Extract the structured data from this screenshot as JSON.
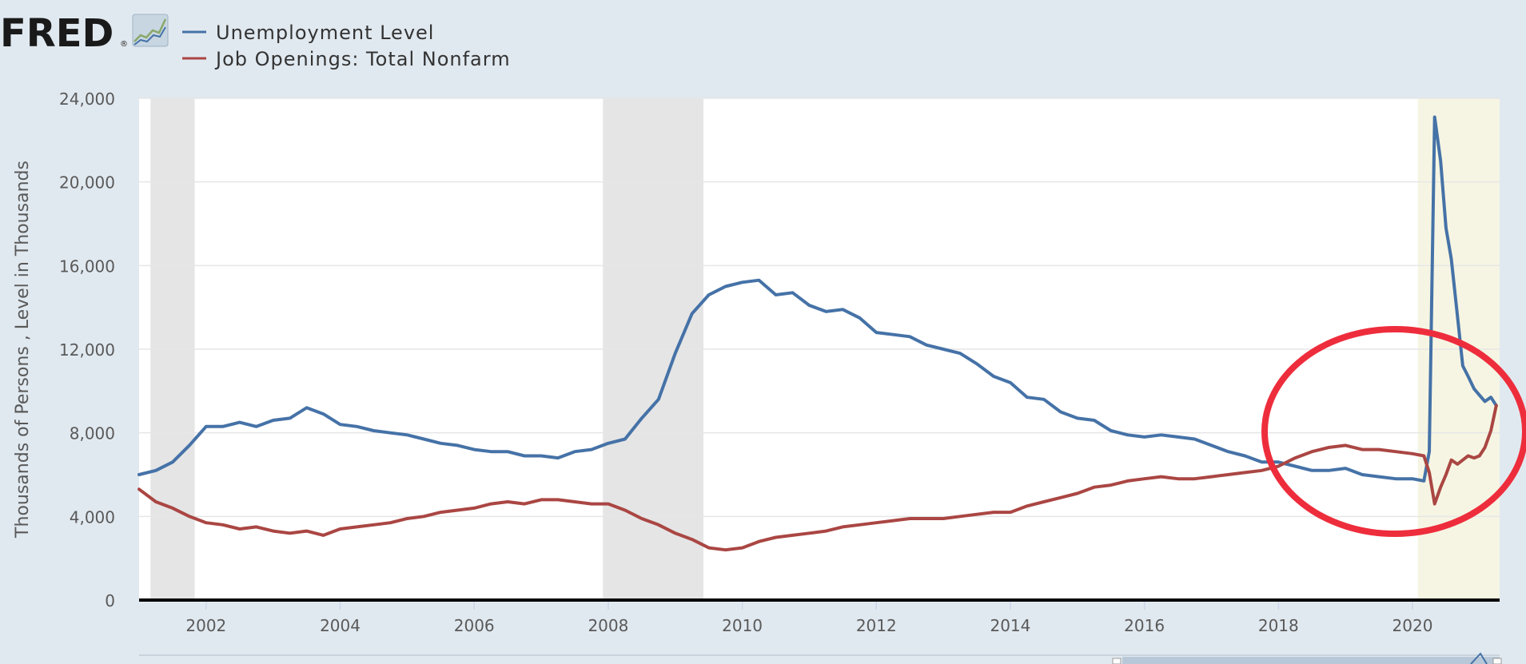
{
  "logo": {
    "text": "FRED",
    "registered": "®"
  },
  "colors": {
    "background": "#e1e9f0",
    "plot_bg": "#ffffff",
    "recession_shade": "#e5e5e5",
    "highlight_shade": "#f6f5e3",
    "unemployment": "#4572a7",
    "job_openings": "#aa4643",
    "annotation_circle": "#ee2d3c"
  },
  "chart_data": {
    "type": "line",
    "title": "",
    "ylabel": "Thousands of Persons , Level in Thousands",
    "xlabel": "",
    "xlim": [
      2001.0,
      2021.3
    ],
    "ylim": [
      0,
      24000
    ],
    "x_ticks": [
      2002,
      2004,
      2006,
      2008,
      2010,
      2012,
      2014,
      2016,
      2018,
      2020
    ],
    "x_tick_labels": [
      "2002",
      "2004",
      "2006",
      "2008",
      "2010",
      "2012",
      "2014",
      "2016",
      "2018",
      "2020"
    ],
    "y_ticks": [
      0,
      4000,
      8000,
      12000,
      16000,
      20000,
      24000
    ],
    "y_tick_labels": [
      "0",
      "4,000",
      "8,000",
      "12,000",
      "16,000",
      "20,000",
      "24,000"
    ],
    "grid": true,
    "legend_position": "top-left",
    "recessions": [
      [
        2001.17,
        2001.83
      ],
      [
        2007.92,
        2009.42
      ],
      [
        2020.08,
        2020.33
      ]
    ],
    "highlight_range": [
      2020.08,
      2021.3
    ],
    "series": [
      {
        "name": "Unemployment Level",
        "x": [
          2001.0,
          2001.25,
          2001.5,
          2001.75,
          2002.0,
          2002.25,
          2002.5,
          2002.75,
          2003.0,
          2003.25,
          2003.5,
          2003.75,
          2004.0,
          2004.25,
          2004.5,
          2004.75,
          2005.0,
          2005.25,
          2005.5,
          2005.75,
          2006.0,
          2006.25,
          2006.5,
          2006.75,
          2007.0,
          2007.25,
          2007.5,
          2007.75,
          2008.0,
          2008.25,
          2008.5,
          2008.75,
          2009.0,
          2009.25,
          2009.5,
          2009.75,
          2010.0,
          2010.25,
          2010.5,
          2010.75,
          2011.0,
          2011.25,
          2011.5,
          2011.75,
          2012.0,
          2012.25,
          2012.5,
          2012.75,
          2013.0,
          2013.25,
          2013.5,
          2013.75,
          2014.0,
          2014.25,
          2014.5,
          2014.75,
          2015.0,
          2015.25,
          2015.5,
          2015.75,
          2016.0,
          2016.25,
          2016.5,
          2016.75,
          2017.0,
          2017.25,
          2017.5,
          2017.75,
          2018.0,
          2018.25,
          2018.5,
          2018.75,
          2019.0,
          2019.25,
          2019.5,
          2019.75,
          2020.0,
          2020.17,
          2020.25,
          2020.33,
          2020.42,
          2020.5,
          2020.58,
          2020.67,
          2020.75,
          2020.83,
          2020.92,
          2021.0,
          2021.08,
          2021.17,
          2021.25
        ],
        "values": [
          6000,
          6200,
          6600,
          7400,
          8300,
          8300,
          8500,
          8300,
          8600,
          8700,
          9200,
          8900,
          8400,
          8300,
          8100,
          8000,
          7900,
          7700,
          7500,
          7400,
          7200,
          7100,
          7100,
          6900,
          6900,
          6800,
          7100,
          7200,
          7500,
          7700,
          8700,
          9600,
          11800,
          13700,
          14600,
          15000,
          15200,
          15300,
          14600,
          14700,
          14100,
          13800,
          13900,
          13500,
          12800,
          12700,
          12600,
          12200,
          12000,
          11800,
          11300,
          10700,
          10400,
          9700,
          9600,
          9000,
          8700,
          8600,
          8100,
          7900,
          7800,
          7900,
          7800,
          7700,
          7400,
          7100,
          6900,
          6600,
          6600,
          6400,
          6200,
          6200,
          6300,
          6000,
          5900,
          5800,
          5800,
          5700,
          7100,
          23100,
          21000,
          17800,
          16300,
          13600,
          11200,
          10700,
          10100,
          9800,
          9500,
          9700,
          9300
        ]
      },
      {
        "name": "Job Openings: Total Nonfarm",
        "x": [
          2001.0,
          2001.25,
          2001.5,
          2001.75,
          2002.0,
          2002.25,
          2002.5,
          2002.75,
          2003.0,
          2003.25,
          2003.5,
          2003.75,
          2004.0,
          2004.25,
          2004.5,
          2004.75,
          2005.0,
          2005.25,
          2005.5,
          2005.75,
          2006.0,
          2006.25,
          2006.5,
          2006.75,
          2007.0,
          2007.25,
          2007.5,
          2007.75,
          2008.0,
          2008.25,
          2008.5,
          2008.75,
          2009.0,
          2009.25,
          2009.5,
          2009.75,
          2010.0,
          2010.25,
          2010.5,
          2010.75,
          2011.0,
          2011.25,
          2011.5,
          2011.75,
          2012.0,
          2012.25,
          2012.5,
          2012.75,
          2013.0,
          2013.25,
          2013.5,
          2013.75,
          2014.0,
          2014.25,
          2014.5,
          2014.75,
          2015.0,
          2015.25,
          2015.5,
          2015.75,
          2016.0,
          2016.25,
          2016.5,
          2016.75,
          2017.0,
          2017.25,
          2017.5,
          2017.75,
          2018.0,
          2018.25,
          2018.5,
          2018.75,
          2019.0,
          2019.25,
          2019.5,
          2019.75,
          2020.0,
          2020.17,
          2020.25,
          2020.33,
          2020.42,
          2020.5,
          2020.58,
          2020.67,
          2020.75,
          2020.83,
          2020.92,
          2021.0,
          2021.08,
          2021.17,
          2021.25
        ],
        "values": [
          5300,
          4700,
          4400,
          4000,
          3700,
          3600,
          3400,
          3500,
          3300,
          3200,
          3300,
          3100,
          3400,
          3500,
          3600,
          3700,
          3900,
          4000,
          4200,
          4300,
          4400,
          4600,
          4700,
          4600,
          4800,
          4800,
          4700,
          4600,
          4600,
          4300,
          3900,
          3600,
          3200,
          2900,
          2500,
          2400,
          2500,
          2800,
          3000,
          3100,
          3200,
          3300,
          3500,
          3600,
          3700,
          3800,
          3900,
          3900,
          3900,
          4000,
          4100,
          4200,
          4200,
          4500,
          4700,
          4900,
          5100,
          5400,
          5500,
          5700,
          5800,
          5900,
          5800,
          5800,
          5900,
          6000,
          6100,
          6200,
          6400,
          6800,
          7100,
          7300,
          7400,
          7200,
          7200,
          7100,
          7000,
          6900,
          6100,
          4600,
          5400,
          6000,
          6700,
          6500,
          6700,
          6900,
          6800,
          6900,
          7300,
          8100,
          9300
        ]
      }
    ]
  }
}
